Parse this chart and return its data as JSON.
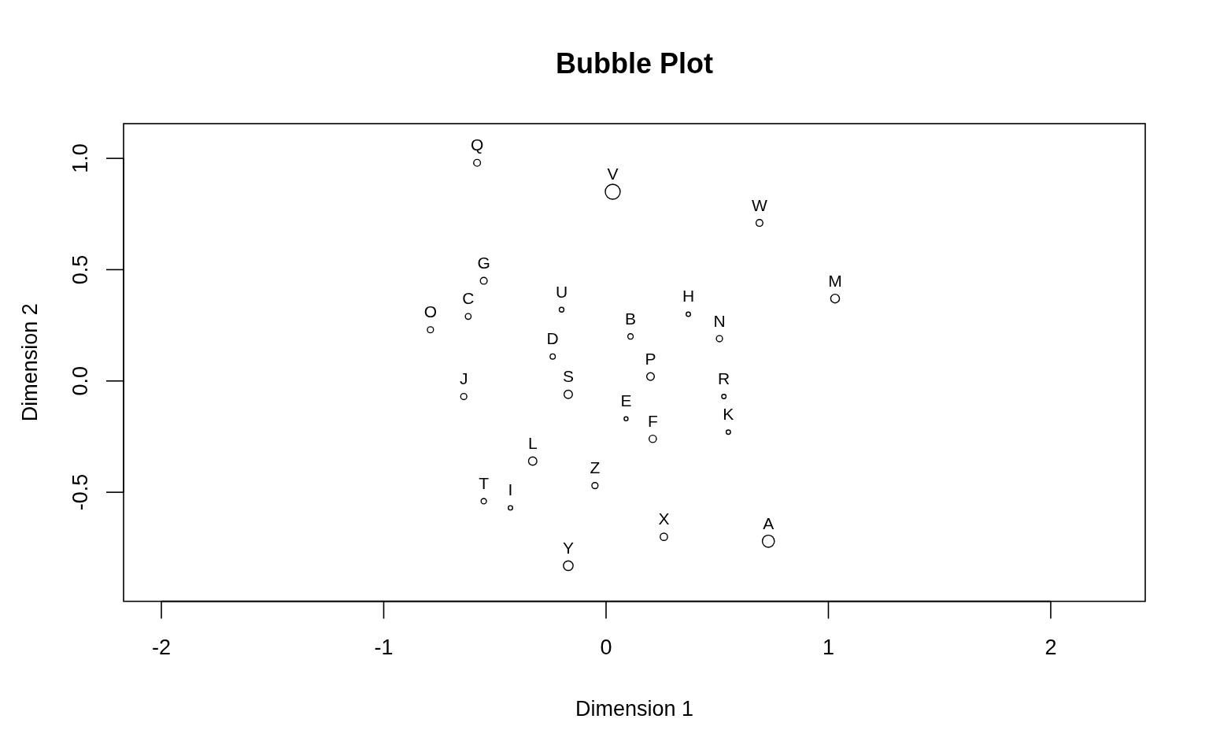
{
  "chart_data": {
    "type": "bubble",
    "title": "Bubble Plot",
    "xlabel": "Dimension 1",
    "ylabel": "Dimension 2",
    "xlim": [
      -2.17,
      2.425
    ],
    "ylim": [
      -0.99,
      1.156
    ],
    "xticks": [
      -2,
      -1,
      0,
      1,
      2
    ],
    "yticks": [
      -0.5,
      {
        "value": 0,
        "label": "0.0"
      },
      0.5,
      {
        "value": 1,
        "label": "1.0"
      }
    ],
    "marker": "circle",
    "series": [
      {
        "color": "#000000",
        "x": [
          0.73,
          0.11,
          -0.62,
          -0.24,
          0.09,
          0.21,
          -0.55,
          0.37,
          -0.43,
          -0.64,
          0.55,
          -0.33,
          1.03,
          0.51,
          -0.79,
          0.2,
          -0.58,
          0.53,
          -0.17,
          -0.55,
          -0.2,
          0.03,
          0.69,
          0.26,
          -0.17,
          -0.05
        ],
        "values": [
          -0.72,
          0.2,
          0.29,
          0.11,
          -0.17,
          -0.26,
          0.45,
          0.3,
          -0.57,
          -0.07,
          -0.23,
          -0.36,
          0.37,
          0.19,
          0.23,
          0.02,
          0.98,
          -0.07,
          -0.06,
          -0.54,
          0.32,
          0.85,
          0.71,
          -0.7,
          -0.83,
          -0.47
        ],
        "sizes": [
          0.65,
          0.13,
          0.15,
          0.12,
          0.07,
          0.24,
          0.21,
          0.085,
          0.085,
          0.17,
          0.085,
          0.31,
          0.34,
          0.17,
          0.17,
          0.26,
          0.21,
          0.085,
          0.31,
          0.13,
          0.1,
          1,
          0.21,
          0.24,
          0.42,
          0.17
        ]
      }
    ],
    "annotations": [
      {
        "text": "A",
        "x": 0.73,
        "y": -0.72
      },
      {
        "text": "B",
        "x": 0.11,
        "y": 0.2
      },
      {
        "text": "C",
        "x": -0.62,
        "y": 0.29
      },
      {
        "text": "D",
        "x": -0.24,
        "y": 0.11
      },
      {
        "text": "E",
        "x": 0.09,
        "y": -0.17
      },
      {
        "text": "F",
        "x": 0.21,
        "y": -0.26
      },
      {
        "text": "G",
        "x": -0.55,
        "y": 0.45
      },
      {
        "text": "H",
        "x": 0.37,
        "y": 0.3
      },
      {
        "text": "I",
        "x": -0.43,
        "y": -0.57
      },
      {
        "text": "J",
        "x": -0.64,
        "y": -0.07
      },
      {
        "text": "K",
        "x": 0.55,
        "y": -0.23
      },
      {
        "text": "L",
        "x": -0.33,
        "y": -0.36
      },
      {
        "text": "M",
        "x": 1.03,
        "y": 0.37
      },
      {
        "text": "N",
        "x": 0.51,
        "y": 0.19
      },
      {
        "text": "O",
        "x": -0.79,
        "y": 0.23
      },
      {
        "text": "P",
        "x": 0.2,
        "y": 0.02
      },
      {
        "text": "Q",
        "x": -0.58,
        "y": 0.98
      },
      {
        "text": "R",
        "x": 0.53,
        "y": -0.07
      },
      {
        "text": "S",
        "x": -0.17,
        "y": -0.06
      },
      {
        "text": "T",
        "x": -0.55,
        "y": -0.54
      },
      {
        "text": "U",
        "x": -0.2,
        "y": 0.32
      },
      {
        "text": "V",
        "x": 0.03,
        "y": 0.85
      },
      {
        "text": "W",
        "x": 0.69,
        "y": 0.71
      },
      {
        "text": "X",
        "x": 0.26,
        "y": -0.7
      },
      {
        "text": "Y",
        "x": -0.17,
        "y": -0.83
      },
      {
        "text": "Z",
        "x": -0.05,
        "y": -0.47
      }
    ]
  }
}
